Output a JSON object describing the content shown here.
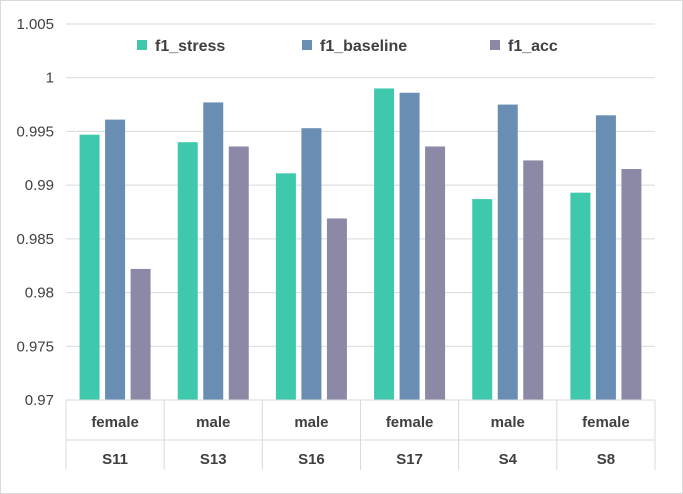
{
  "chart_data": {
    "type": "bar",
    "categories": [
      {
        "gender": "female",
        "subject": "S11"
      },
      {
        "gender": "male",
        "subject": "S13"
      },
      {
        "gender": "male",
        "subject": "S16"
      },
      {
        "gender": "female",
        "subject": "S17"
      },
      {
        "gender": "male",
        "subject": "S4"
      },
      {
        "gender": "female",
        "subject": "S8"
      }
    ],
    "series": [
      {
        "name": "f1_stress",
        "color": "#3ec9ad",
        "values": [
          0.9947,
          0.994,
          0.9911,
          0.999,
          0.9887,
          0.9893
        ]
      },
      {
        "name": "f1_baseline",
        "color": "#6a8db4",
        "values": [
          0.9961,
          0.9977,
          0.9953,
          0.9986,
          0.9975,
          0.9965
        ]
      },
      {
        "name": "f1_acc",
        "color": "#8c89a6",
        "values": [
          0.9822,
          0.9936,
          0.9869,
          0.9936,
          0.9923,
          0.9915
        ]
      }
    ],
    "ylim": [
      0.97,
      1.005
    ],
    "yticks": [
      "0.97",
      "0.975",
      "0.98",
      "0.985",
      "0.99",
      "0.995",
      "1",
      "1.005"
    ],
    "grid": true,
    "legend_position": "top"
  }
}
